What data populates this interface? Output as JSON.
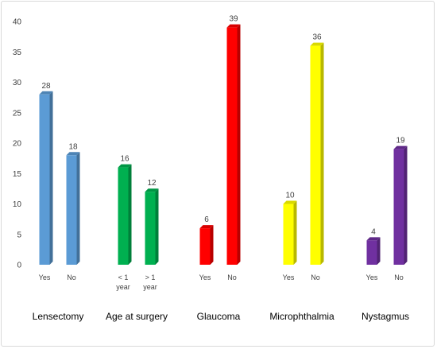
{
  "chart_data": {
    "type": "bar",
    "groups": [
      {
        "label": "Lensectomy",
        "bars": [
          {
            "category": [
              "Yes"
            ],
            "value": 28,
            "color": "#5B9BD5"
          },
          {
            "category": [
              "No"
            ],
            "value": 18,
            "color": "#5B9BD5"
          }
        ]
      },
      {
        "label": "Age at surgery",
        "bars": [
          {
            "category": [
              "< 1",
              "year"
            ],
            "value": 16,
            "color": "#00B050"
          },
          {
            "category": [
              "> 1",
              "year"
            ],
            "value": 12,
            "color": "#00B050"
          }
        ]
      },
      {
        "label": "Glaucoma",
        "bars": [
          {
            "category": [
              "Yes"
            ],
            "value": 6,
            "color": "#FF0000"
          },
          {
            "category": [
              "No"
            ],
            "value": 39,
            "color": "#FF0000"
          }
        ]
      },
      {
        "label": "Microphthalmia",
        "bars": [
          {
            "category": [
              "Yes"
            ],
            "value": 10,
            "color": "#FFFF00"
          },
          {
            "category": [
              "No"
            ],
            "value": 36,
            "color": "#FFFF00"
          }
        ]
      },
      {
        "label": "Nystagmus",
        "bars": [
          {
            "category": [
              "Yes"
            ],
            "value": 4,
            "color": "#7030A0"
          },
          {
            "category": [
              "No"
            ],
            "value": 19,
            "color": "#7030A0"
          }
        ]
      }
    ],
    "ylim": [
      0,
      40
    ],
    "yticks": [
      0,
      5,
      10,
      15,
      20,
      25,
      30,
      35,
      40
    ],
    "grid": false,
    "style": "3d-column"
  }
}
